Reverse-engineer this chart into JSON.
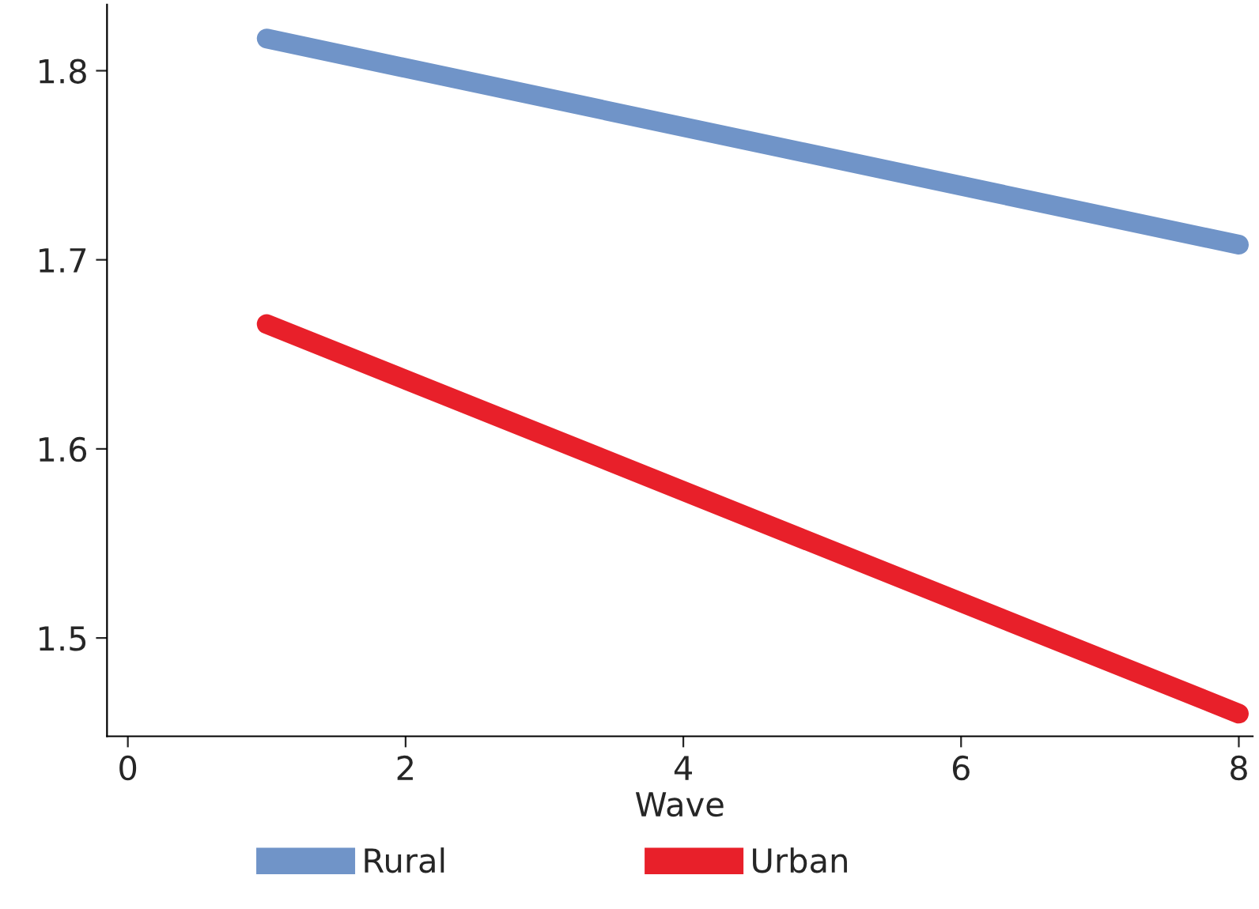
{
  "chart_data": {
    "type": "line",
    "xlabel": "Wave",
    "x": [
      1,
      8
    ],
    "series": [
      {
        "name": "Rural",
        "color": "#7094c8",
        "values": [
          1.817,
          1.708
        ]
      },
      {
        "name": "Urban",
        "color": "#e8202a",
        "values": [
          1.666,
          1.46
        ]
      }
    ],
    "xlim": [
      -0.15,
      8.1
    ],
    "xticks": [
      0,
      2,
      4,
      6,
      8
    ],
    "ylim": [
      1.448,
      1.835
    ],
    "yticks": [
      1.5,
      1.6,
      1.7,
      1.8
    ],
    "grid": false,
    "legend": "bottom",
    "line_style": "solid"
  }
}
